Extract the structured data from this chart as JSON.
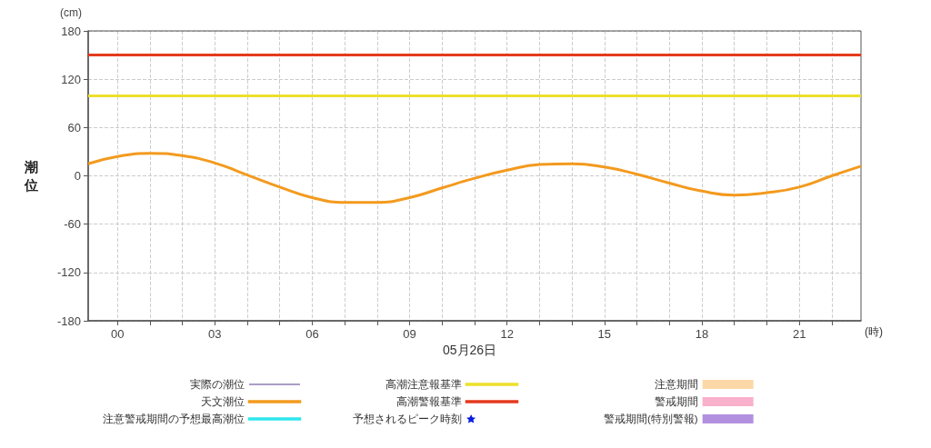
{
  "chart_data": {
    "type": "line",
    "ylabel": "潮位",
    "xlabel": "(時)",
    "annotations": [
      "(cm)",
      "05月26日"
    ],
    "xlim": [
      -0.9,
      22.9
    ],
    "xticks": [
      {
        "value": 0,
        "label": "00"
      },
      {
        "value": 1,
        "label": null
      },
      {
        "value": 2,
        "label": null
      },
      {
        "value": 3,
        "label": "03"
      },
      {
        "value": 4,
        "label": null
      },
      {
        "value": 5,
        "label": null
      },
      {
        "value": 6,
        "label": "06"
      },
      {
        "value": 7,
        "label": null
      },
      {
        "value": 8,
        "label": null
      },
      {
        "value": 9,
        "label": "09"
      },
      {
        "value": 10,
        "label": null
      },
      {
        "value": 11,
        "label": null
      },
      {
        "value": 12,
        "label": "12"
      },
      {
        "value": 13,
        "label": null
      },
      {
        "value": 14,
        "label": null
      },
      {
        "value": 15,
        "label": "15"
      },
      {
        "value": 16,
        "label": null
      },
      {
        "value": 17,
        "label": null
      },
      {
        "value": 18,
        "label": "18"
      },
      {
        "value": 19,
        "label": null
      },
      {
        "value": 20,
        "label": null
      },
      {
        "value": 21,
        "label": "21"
      },
      {
        "value": 22,
        "label": null
      }
    ],
    "ylim": [
      -180,
      180
    ],
    "yticks": [
      -180,
      -120,
      -60,
      0,
      60,
      120,
      180
    ],
    "grid": true,
    "legend": "bottom",
    "marker": "none",
    "line_style": "solid",
    "x": [
      -0.9,
      0,
      1,
      2,
      3,
      4,
      5,
      6,
      7,
      8,
      9,
      10,
      11,
      12,
      13,
      14,
      15,
      16,
      17,
      18,
      19,
      20,
      21,
      22,
      22.9
    ],
    "series": [
      {
        "name": "実際の潮位",
        "type": "line",
        "color": "#5b3c8c",
        "values": [
          null,
          null,
          null,
          null,
          null,
          null,
          null,
          null,
          null,
          null,
          null,
          null,
          null,
          null,
          null,
          null,
          null,
          null,
          null,
          null,
          null,
          null,
          null,
          null,
          null
        ]
      },
      {
        "name": "天文潮位",
        "type": "line",
        "color": "#f39a1e",
        "values": [
          15,
          24,
          28,
          25,
          16,
          1,
          -14,
          -27,
          -33,
          -33,
          -27,
          -15,
          -3,
          7,
          14,
          15,
          11,
          2,
          -9,
          -19,
          -24,
          -21,
          -14,
          0,
          12
        ]
      },
      {
        "name": "注意警戒期間の予想最高潮位",
        "type": "line",
        "color": "#2ee6ee",
        "values": [
          null,
          null,
          null,
          null,
          null,
          null,
          null,
          null,
          null,
          null,
          null,
          null,
          null,
          null,
          null,
          null,
          null,
          null,
          null,
          null,
          null,
          null,
          null,
          null,
          null
        ]
      },
      {
        "name": "予想されるピーク時刻",
        "type": "scatter",
        "marker": "star",
        "color": "#0a1ee0",
        "values": [
          null,
          null,
          null,
          null,
          null,
          null,
          null,
          null,
          null,
          null,
          null,
          null,
          null,
          null,
          null,
          null,
          null,
          null,
          null,
          null,
          null,
          null,
          null,
          null,
          null
        ]
      },
      {
        "name": "注意期間",
        "type": "area",
        "color": "#fcd8a8",
        "values": [
          null,
          null,
          null,
          null,
          null,
          null,
          null,
          null,
          null,
          null,
          null,
          null,
          null,
          null,
          null,
          null,
          null,
          null,
          null,
          null,
          null,
          null,
          null,
          null,
          null
        ]
      },
      {
        "name": "警戒期間",
        "type": "area",
        "color": "#f9b0cb",
        "values": [
          null,
          null,
          null,
          null,
          null,
          null,
          null,
          null,
          null,
          null,
          null,
          null,
          null,
          null,
          null,
          null,
          null,
          null,
          null,
          null,
          null,
          null,
          null,
          null,
          null
        ]
      },
      {
        "name": "警戒期間(特別警報)",
        "type": "area",
        "color": "#b290df",
        "values": [
          null,
          null,
          null,
          null,
          null,
          null,
          null,
          null,
          null,
          null,
          null,
          null,
          null,
          null,
          null,
          null,
          null,
          null,
          null,
          null,
          null,
          null,
          null,
          null,
          null
        ]
      }
    ],
    "ref_lines": [
      {
        "axis": "y",
        "value": 100,
        "label": "高潮注意報基準",
        "color": "#ede02a"
      },
      {
        "axis": "y",
        "value": 150,
        "label": "高潮警報基準",
        "color": "#e53a1e"
      }
    ]
  }
}
